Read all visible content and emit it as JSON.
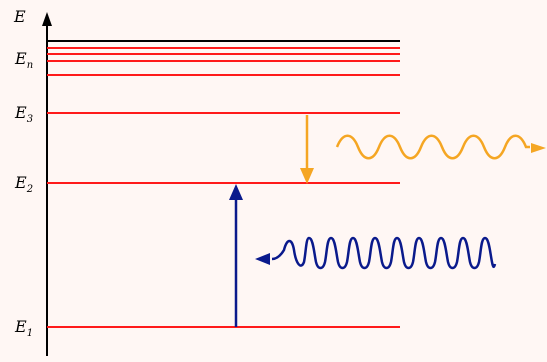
{
  "axis": {
    "label": "E"
  },
  "levels": [
    {
      "symbol": "E",
      "subscript": "n"
    },
    {
      "symbol": "E",
      "subscript": "3"
    },
    {
      "symbol": "E",
      "subscript": "2"
    },
    {
      "symbol": "E",
      "subscript": "1"
    }
  ],
  "colors": {
    "background": "#fff7f4",
    "axis": "#000000",
    "level_line": "#ff1a1a",
    "top_line": "#000000",
    "emission": "#f5a623",
    "absorption": "#0a1a8c"
  },
  "transitions": {
    "absorption": {
      "from": "E1",
      "to": "E2",
      "color_name": "blue"
    },
    "emission": {
      "from": "E3",
      "to": "E2",
      "color_name": "orange"
    }
  }
}
